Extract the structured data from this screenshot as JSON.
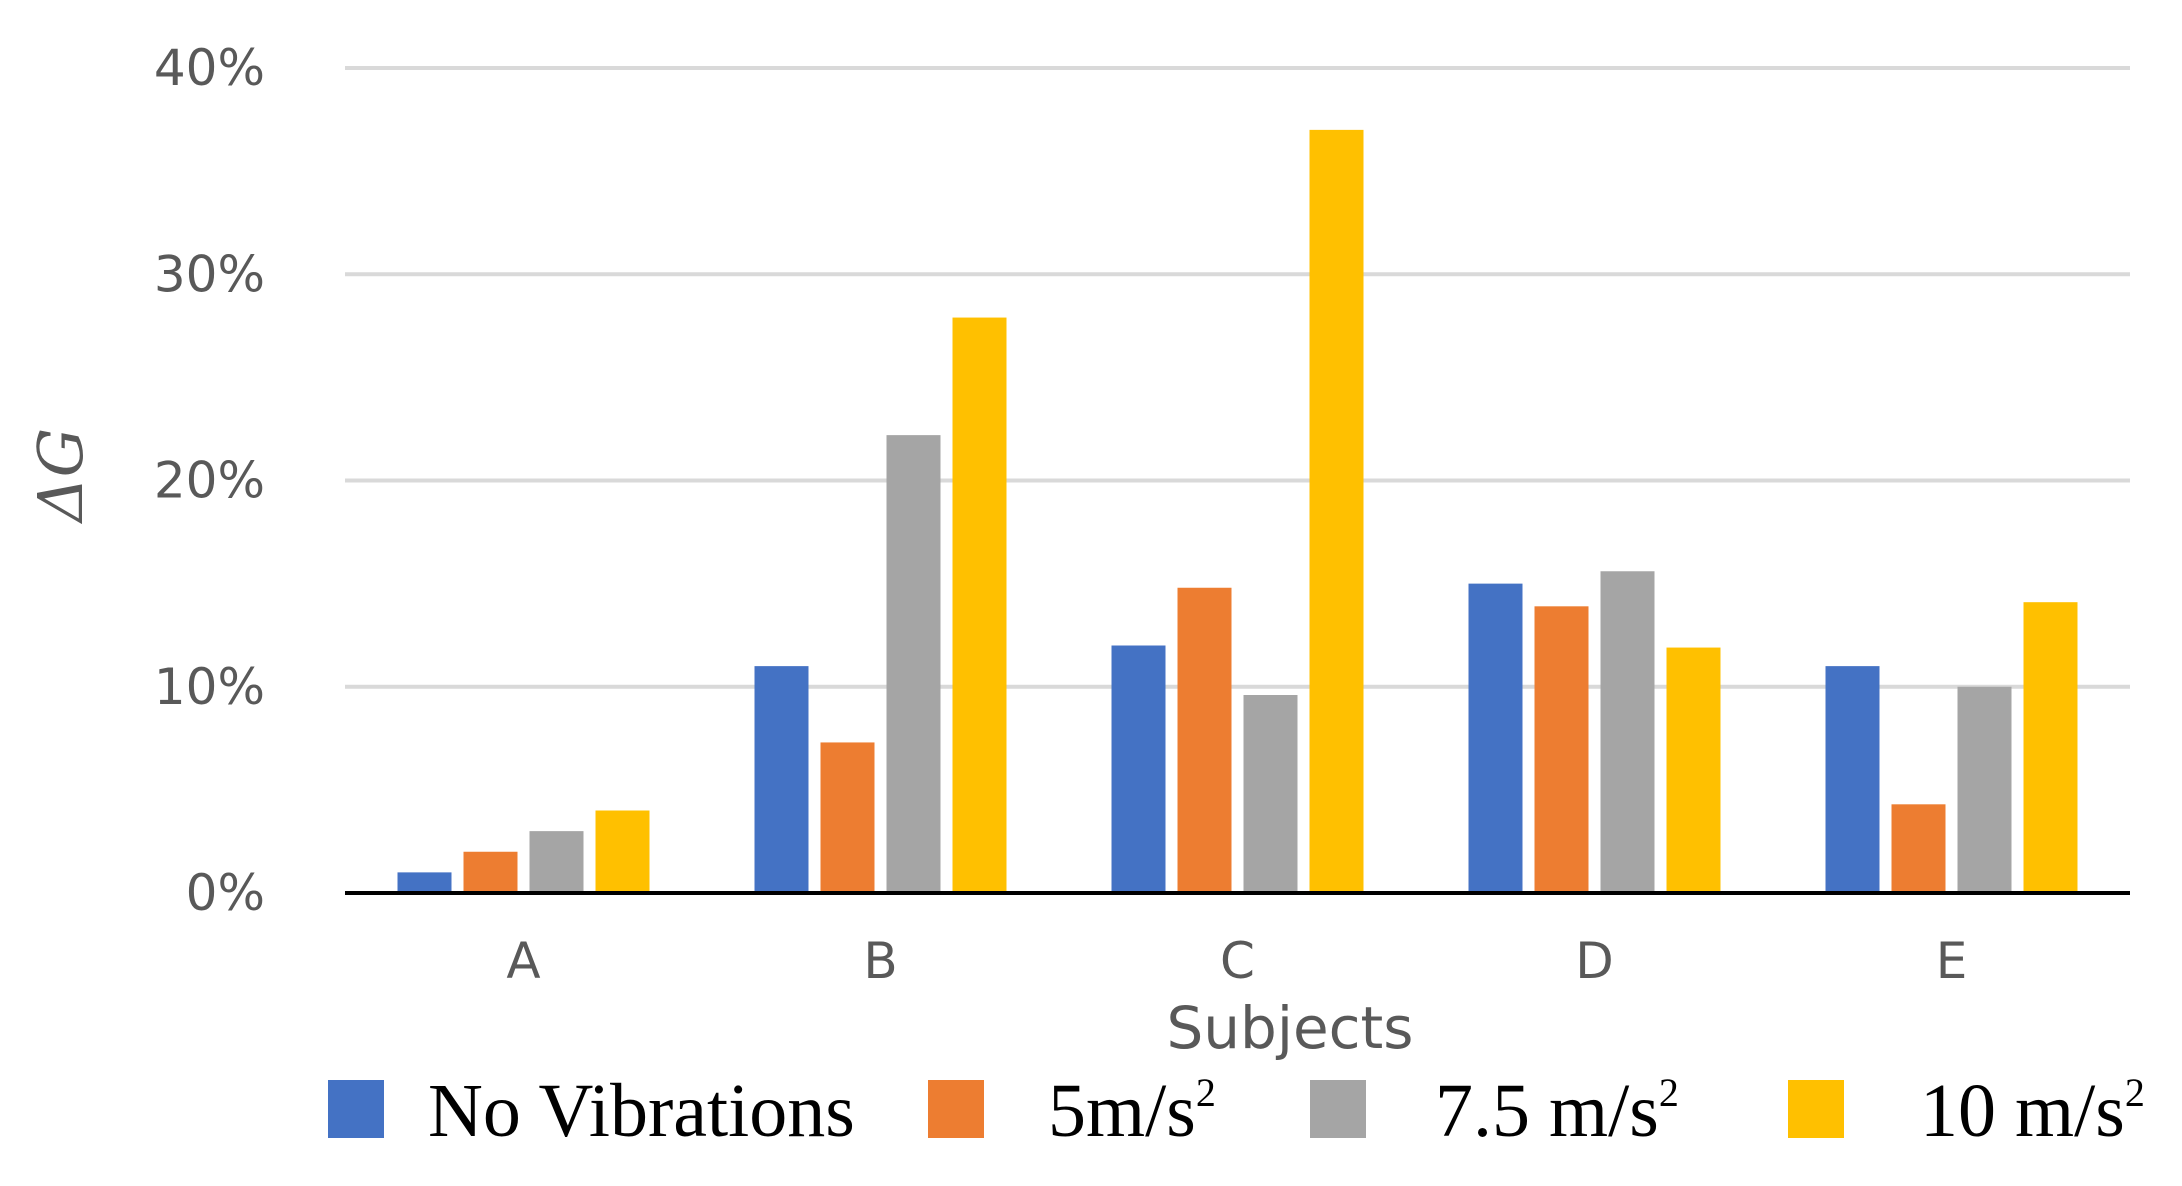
{
  "chart_data": {
    "type": "bar",
    "title": "",
    "xlabel": "Subjects",
    "ylabel": "ΔG",
    "ylim": [
      0,
      40
    ],
    "yticks": [
      "0%",
      "10%",
      "20%",
      "30%",
      "40%"
    ],
    "categories": [
      "A",
      "B",
      "C",
      "D",
      "E"
    ],
    "grid": true,
    "legend_position": "bottom",
    "series": [
      {
        "name": "No Vibrations",
        "base": "No Vibrations",
        "sup": "",
        "color": "#4472C4",
        "values": [
          1,
          11,
          12,
          15,
          11
        ]
      },
      {
        "name": "5m/s2",
        "base": "5m/s",
        "sup": "2",
        "color": "#ED7D31",
        "values": [
          2,
          7.3,
          14.8,
          13.9,
          4.3
        ]
      },
      {
        "name": "7.5 m/s2",
        "base": "7.5 m/s",
        "sup": "2",
        "color": "#A5A5A5",
        "values": [
          3,
          22.2,
          9.6,
          15.6,
          10
        ]
      },
      {
        "name": "10 m/s2",
        "base": "10 m/s",
        "sup": "2",
        "color": "#FFC000",
        "values": [
          4,
          27.9,
          37,
          11.9,
          14.1
        ]
      }
    ]
  }
}
